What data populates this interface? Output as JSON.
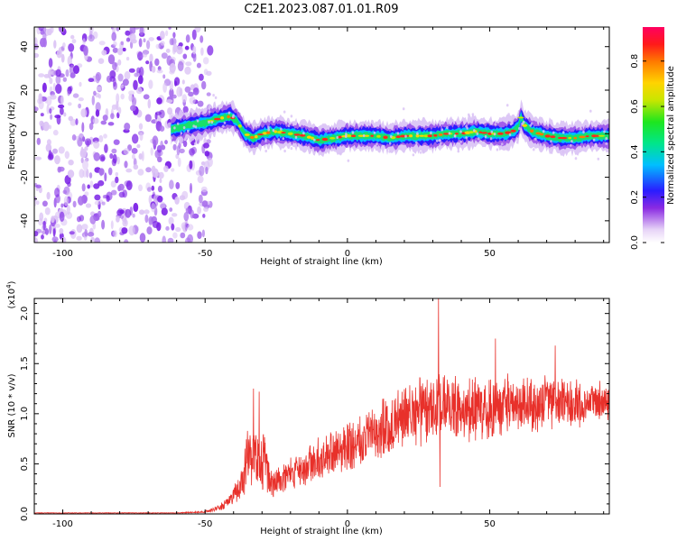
{
  "title": "C2E1.2023.087.01.01.R09",
  "colorbar": {
    "label": "Normalized spectral amplitude",
    "ticks": [
      "0.0",
      "0.2",
      "0.4",
      "0.6",
      "0.8"
    ],
    "tick_values": [
      0.0,
      0.2,
      0.4,
      0.6,
      0.8
    ],
    "range": [
      0,
      0.95
    ]
  },
  "chart_data": [
    {
      "type": "heatmap",
      "xlabel": "Height of straight line (km)",
      "ylabel": "Frequency (Hz)",
      "xlim": [
        -110,
        92
      ],
      "ylim": [
        -50,
        49
      ],
      "xticks": [
        -100,
        -50,
        0,
        50
      ],
      "xtick_labels": [
        "-100",
        "-50",
        "0",
        "50"
      ],
      "yticks": [
        40,
        20,
        0,
        -20,
        -40
      ],
      "ytick_labels": [
        "40",
        "20",
        "0",
        "-20",
        "-40"
      ],
      "grid": false,
      "noise_region_x": [
        -110,
        -50
      ],
      "ridge": {
        "x": [
          -62,
          -55,
          -50,
          -45,
          -41,
          -39,
          -36,
          -33,
          -30,
          -25,
          -20,
          -15,
          -10,
          -5,
          0,
          5,
          10,
          15,
          20,
          25,
          30,
          35,
          40,
          45,
          50,
          55,
          58,
          60,
          61,
          62,
          65,
          70,
          75,
          80,
          85,
          92
        ],
        "freq": [
          2,
          4,
          5,
          7,
          8,
          6,
          0,
          -2,
          0,
          1,
          0,
          -1,
          -3,
          -2,
          -1,
          -1,
          -1,
          -2,
          -1,
          -1,
          -1,
          0,
          0,
          1,
          0,
          0,
          1,
          3,
          8,
          4,
          1,
          -1,
          -2,
          -2,
          -1,
          -1
        ]
      },
      "colormap": "rainbow (purple→blue→cyan→green→yellow→red→magenta)"
    },
    {
      "type": "line",
      "xlabel": "Height of straight line (km)",
      "ylabel": "SNR (10 * v/v)",
      "y_multiplier": "(x10^4)",
      "xlim": [
        -110,
        92
      ],
      "ylim": [
        0,
        2.15
      ],
      "xticks": [
        -100,
        -50,
        0,
        50
      ],
      "xtick_labels": [
        "-100",
        "-50",
        "0",
        "50"
      ],
      "yticks": [
        0.0,
        0.5,
        1.0,
        1.5,
        2.0
      ],
      "ytick_labels": [
        "0.0",
        "0.5",
        "1.0",
        "1.5",
        "2.0"
      ],
      "grid": false,
      "series": [
        {
          "color": "#e8302a",
          "envelope": {
            "x": [
              -110,
              -60,
              -50,
              -45,
              -42,
              -40,
              -37,
              -35,
              -33,
              -31,
              -29,
              -27,
              -25,
              -20,
              -15,
              -10,
              -5,
              0,
              5,
              10,
              15,
              20,
              25,
              30,
              33,
              35,
              40,
              45,
              50,
              55,
              60,
              65,
              70,
              75,
              80,
              85,
              92
            ],
            "mean": [
              0.01,
              0.01,
              0.02,
              0.06,
              0.12,
              0.18,
              0.3,
              0.55,
              0.6,
              0.5,
              0.55,
              0.3,
              0.35,
              0.4,
              0.45,
              0.55,
              0.6,
              0.65,
              0.72,
              0.8,
              0.88,
              0.95,
              1.02,
              1.05,
              1.1,
              1.08,
              1.05,
              1.05,
              1.05,
              1.1,
              1.1,
              1.08,
              1.1,
              1.12,
              1.1,
              1.12,
              1.1
            ],
            "spread": [
              0.003,
              0.003,
              0.01,
              0.03,
              0.05,
              0.08,
              0.15,
              0.3,
              0.3,
              0.25,
              0.3,
              0.12,
              0.15,
              0.15,
              0.18,
              0.2,
              0.22,
              0.25,
              0.25,
              0.28,
              0.3,
              0.3,
              0.32,
              0.32,
              0.32,
              0.3,
              0.3,
              0.3,
              0.3,
              0.28,
              0.28,
              0.26,
              0.25,
              0.24,
              0.22,
              0.2,
              0.2
            ]
          },
          "peaks": [
            {
              "x": 32,
              "y": 2.15
            },
            {
              "x": -33,
              "y": 1.25
            },
            {
              "x": -31,
              "y": 1.22
            },
            {
              "x": 52,
              "y": 1.75
            },
            {
              "x": 73,
              "y": 1.68
            },
            {
              "x": 32.5,
              "y": 0.27
            }
          ]
        }
      ]
    }
  ]
}
